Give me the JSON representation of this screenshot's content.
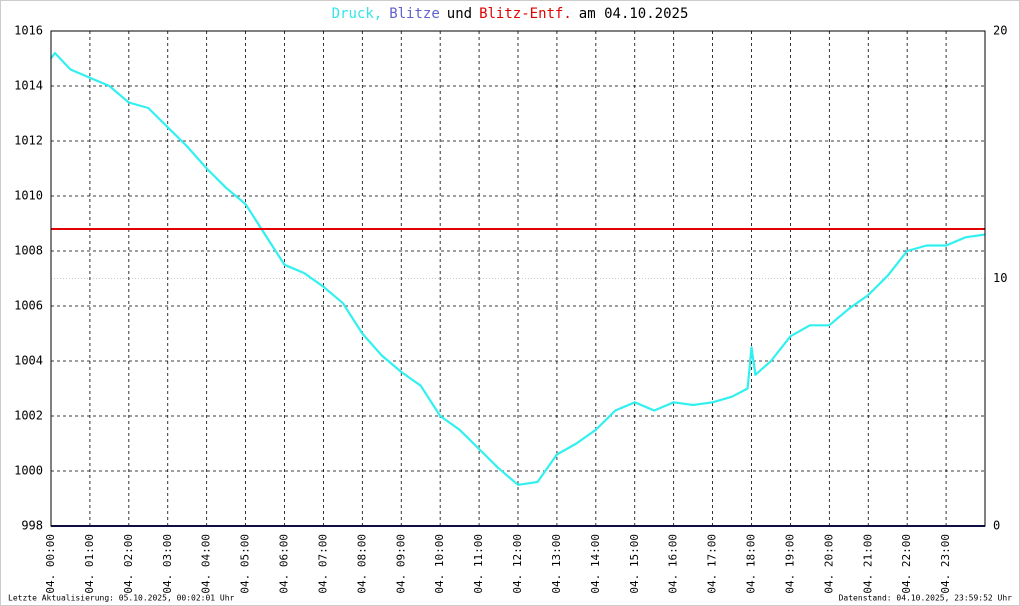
{
  "chart_data": {
    "type": "line",
    "title_parts": [
      {
        "text": "Druck,",
        "color": "#33e6e6"
      },
      {
        "text": "Blitze",
        "color": "#6060d0"
      },
      {
        "text": "und",
        "color": "#000000"
      },
      {
        "text": "Blitz-Entf.",
        "color": "#e00000"
      },
      {
        "text": "am 04.10.2025",
        "color": "#000000"
      }
    ],
    "footer_left": "Letzte Aktualisierung: 05.10.2025, 00:02:01 Uhr",
    "footer_right": "Datenstand: 04.10.2025, 23:59:52 Uhr",
    "xlim": [
      0,
      24
    ],
    "xticks": [
      {
        "value": 0,
        "label": "04. 00:00"
      },
      {
        "value": 1,
        "label": "04. 01:00"
      },
      {
        "value": 2,
        "label": "04. 02:00"
      },
      {
        "value": 3,
        "label": "04. 03:00"
      },
      {
        "value": 4,
        "label": "04. 04:00"
      },
      {
        "value": 5,
        "label": "04. 05:00"
      },
      {
        "value": 6,
        "label": "04. 06:00"
      },
      {
        "value": 7,
        "label": "04. 07:00"
      },
      {
        "value": 8,
        "label": "04. 08:00"
      },
      {
        "value": 9,
        "label": "04. 09:00"
      },
      {
        "value": 10,
        "label": "04. 10:00"
      },
      {
        "value": 11,
        "label": "04. 11:00"
      },
      {
        "value": 12,
        "label": "04. 12:00"
      },
      {
        "value": 13,
        "label": "04. 13:00"
      },
      {
        "value": 14,
        "label": "04. 14:00"
      },
      {
        "value": 15,
        "label": "04. 15:00"
      },
      {
        "value": 16,
        "label": "04. 16:00"
      },
      {
        "value": 17,
        "label": "04. 17:00"
      },
      {
        "value": 18,
        "label": "04. 18:00"
      },
      {
        "value": 19,
        "label": "04. 19:00"
      },
      {
        "value": 20,
        "label": "04. 20:00"
      },
      {
        "value": 21,
        "label": "04. 21:00"
      },
      {
        "value": 22,
        "label": "04. 22:00"
      },
      {
        "value": 23,
        "label": "04. 23:00"
      }
    ],
    "ylim": [
      998,
      1016
    ],
    "yticks": [
      998,
      1000,
      1002,
      1004,
      1006,
      1008,
      1010,
      1012,
      1014,
      1016
    ],
    "y2lim": [
      0,
      20
    ],
    "y2ticks": [
      0,
      10,
      20
    ],
    "grid": true,
    "series": [
      {
        "name": "Druck",
        "color": "#33f0f0",
        "x": [
          0,
          0.1,
          0.5,
          1,
          1.5,
          2,
          2.5,
          3,
          3.5,
          4,
          4.5,
          5,
          5.5,
          6,
          6.5,
          7,
          7.5,
          8,
          8.5,
          9,
          9.5,
          10,
          10.5,
          11,
          11.5,
          12,
          12.5,
          13,
          13.5,
          14,
          14.5,
          15,
          15.5,
          16,
          16.5,
          17,
          17.5,
          17.9,
          18,
          18.1,
          18.5,
          19,
          19.5,
          20,
          20.5,
          21,
          21.5,
          22,
          22.5,
          23,
          23.5,
          24
        ],
        "values": [
          1015.0,
          1015.2,
          1014.6,
          1014.3,
          1014.0,
          1013.4,
          1013.2,
          1012.5,
          1011.8,
          1011.0,
          1010.3,
          1009.7,
          1008.6,
          1007.5,
          1007.2,
          1006.7,
          1006.1,
          1005.0,
          1004.2,
          1003.6,
          1003.1,
          1002.0,
          1001.5,
          1000.8,
          1000.1,
          999.5,
          999.6,
          1000.6,
          1001.0,
          1001.5,
          1002.2,
          1002.5,
          1002.2,
          1002.5,
          1002.4,
          1002.5,
          1002.7,
          1003.0,
          1004.5,
          1003.5,
          1004.0,
          1004.9,
          1005.3,
          1005.3,
          1005.9,
          1006.4,
          1007.1,
          1008.0,
          1008.2,
          1008.2,
          1008.5,
          1008.6
        ]
      },
      {
        "name": "Blitze",
        "color": "#202080",
        "axis": "y2",
        "x": [
          0,
          24
        ],
        "values": [
          0,
          0
        ]
      },
      {
        "name": "Blitz-Entf.",
        "color": "#e00000",
        "axis": "y2",
        "x": [
          0,
          24
        ],
        "values": [
          12,
          12
        ]
      }
    ]
  }
}
